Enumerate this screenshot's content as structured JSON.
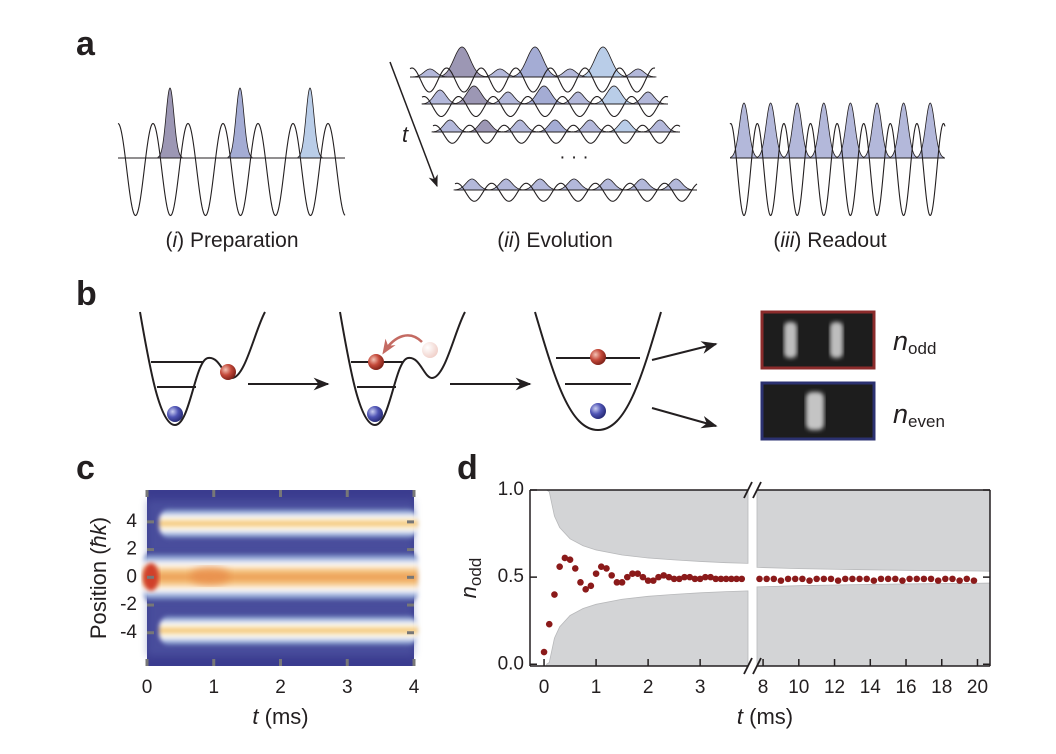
{
  "figure": {
    "panel_labels": [
      "a",
      "b",
      "c",
      "d"
    ],
    "a": {
      "captions": [
        [
          "(",
          "i",
          ") Preparation"
        ],
        [
          "(",
          "ii",
          ") Evolution"
        ],
        [
          "(",
          "iii",
          ") Readout"
        ]
      ],
      "time_label": "t",
      "ellipsis": "· · ·"
    },
    "b": {
      "labels": [
        [
          "n",
          "odd"
        ],
        [
          "n",
          "even"
        ]
      ]
    }
  },
  "chart_data": [
    {
      "type": "heatmap",
      "ylabel": [
        "Position (",
        "ħk",
        ")"
      ],
      "xlabel": [
        "t",
        " (ms)"
      ],
      "xlim": [
        0,
        4
      ],
      "xticks": [
        0,
        1,
        2,
        3,
        4
      ],
      "ylim": [
        -6.4,
        6.3
      ],
      "yticks": [
        4,
        2,
        0,
        -2,
        -4
      ]
    },
    {
      "type": "scatter",
      "ylabel": [
        "n",
        "odd"
      ],
      "xlabel": [
        "t",
        " (ms)"
      ],
      "color": "#8b1a1a",
      "band_color": "#d3d4d6",
      "x_segments": [
        [
          -0.27,
          3.92
        ],
        [
          7.66,
          20.7
        ]
      ],
      "xticks": [
        0,
        1,
        2,
        3,
        8,
        10,
        12,
        14,
        16,
        18,
        20
      ],
      "ylim": [
        -0.01,
        1.0
      ],
      "yticks": [
        {
          "value": 0,
          "label": "0.0"
        },
        0.5,
        {
          "value": 1,
          "label": "1.0"
        }
      ],
      "x": [
        0,
        0.1,
        0.2,
        0.3,
        0.4,
        0.5,
        0.6,
        0.7,
        0.8,
        0.9,
        1.0,
        1.1,
        1.2,
        1.3,
        1.4,
        1.5,
        1.6,
        1.7,
        1.8,
        1.9,
        2.0,
        2.1,
        2.2,
        2.3,
        2.4,
        2.5,
        2.6,
        2.7,
        2.8,
        2.9,
        3.0,
        3.1,
        3.2,
        3.3,
        3.4,
        3.5,
        3.6,
        3.7,
        3.8,
        7.8,
        8.2,
        8.6,
        9.0,
        9.4,
        9.8,
        10.2,
        10.6,
        11.0,
        11.4,
        11.8,
        12.2,
        12.6,
        13.0,
        13.4,
        13.8,
        14.2,
        14.6,
        15.0,
        15.4,
        15.8,
        16.2,
        16.6,
        17.0,
        17.4,
        17.8,
        18.2,
        18.6,
        19.0,
        19.4,
        19.8
      ],
      "values": [
        0.07,
        0.23,
        0.4,
        0.56,
        0.61,
        0.6,
        0.55,
        0.47,
        0.43,
        0.45,
        0.52,
        0.56,
        0.55,
        0.51,
        0.47,
        0.47,
        0.5,
        0.52,
        0.52,
        0.5,
        0.48,
        0.48,
        0.5,
        0.51,
        0.5,
        0.49,
        0.49,
        0.5,
        0.5,
        0.49,
        0.49,
        0.5,
        0.5,
        0.49,
        0.49,
        0.49,
        0.49,
        0.49,
        0.49,
        0.49,
        0.49,
        0.49,
        0.48,
        0.49,
        0.49,
        0.49,
        0.48,
        0.49,
        0.49,
        0.49,
        0.48,
        0.49,
        0.49,
        0.49,
        0.49,
        0.48,
        0.49,
        0.49,
        0.49,
        0.48,
        0.49,
        0.49,
        0.49,
        0.49,
        0.48,
        0.49,
        0.49,
        0.48,
        0.49,
        0.48
      ],
      "band": {
        "x": [
          0.05,
          0.1,
          0.2,
          0.3,
          0.5,
          0.75,
          1,
          1.5,
          2,
          2.5,
          3,
          3.5,
          3.92,
          7.66,
          8,
          10,
          12,
          14,
          16,
          18,
          20,
          20.7
        ],
        "upper": [
          1.0,
          0.99,
          0.85,
          0.785,
          0.72,
          0.68,
          0.656,
          0.627,
          0.61,
          0.599,
          0.59,
          0.583,
          0.579,
          0.556,
          0.555,
          0.549,
          0.545,
          0.542,
          0.539,
          0.537,
          0.535,
          0.534
        ],
        "lower": [
          0.0,
          0.01,
          0.15,
          0.215,
          0.28,
          0.32,
          0.344,
          0.373,
          0.39,
          0.401,
          0.41,
          0.417,
          0.421,
          0.444,
          0.445,
          0.451,
          0.455,
          0.458,
          0.461,
          0.463,
          0.465,
          0.466
        ]
      }
    }
  ]
}
